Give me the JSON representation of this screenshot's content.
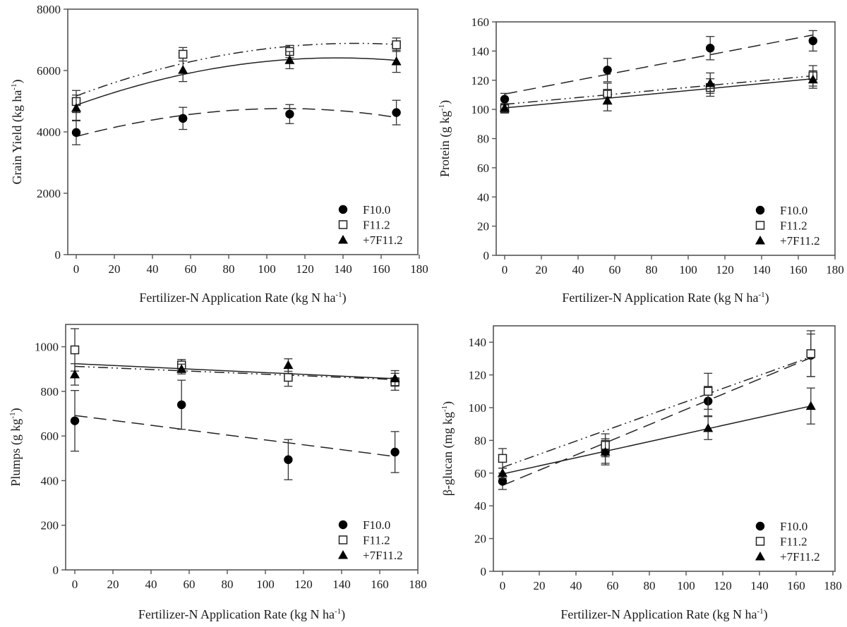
{
  "figure": {
    "panel_count": 4,
    "layout": "2x2"
  },
  "chart_data": [
    {
      "type": "scatter",
      "id": "grain-yield",
      "title": "",
      "xlabel": "Fertilizer-N Application Rate (kg N ha",
      "xlabel_sup": "-1",
      "ylabel": "Grain Yield (kg ha",
      "ylabel_sup": "-1",
      "xlim": [
        -5,
        180
      ],
      "ylim": [
        0,
        8000
      ],
      "xticks": [
        0,
        20,
        40,
        60,
        80,
        100,
        120,
        140,
        160,
        180
      ],
      "yticks": [
        0,
        2000,
        4000,
        6000,
        8000
      ],
      "grid": false,
      "legend_position": "bottom-right",
      "x": [
        0,
        56,
        112,
        168
      ],
      "series": [
        {
          "name": "F10.0",
          "marker": "filled-circle",
          "fit": "quadratic",
          "line": "dashed",
          "values": [
            3980,
            4440,
            4580,
            4630
          ],
          "err": [
            400,
            360,
            310,
            400
          ],
          "fit_values": [
            3850,
            4540,
            4760,
            4470
          ]
        },
        {
          "name": "F11.2",
          "marker": "open-square",
          "fit": "quadratic",
          "line": "dash-dot-dot",
          "values": [
            4990,
            6530,
            6620,
            6840
          ],
          "err": [
            360,
            220,
            200,
            220
          ],
          "fit_values": [
            5170,
            6230,
            6790,
            6850
          ]
        },
        {
          "name": "+7F11.2",
          "marker": "filled-triangle",
          "fit": "quadratic",
          "line": "solid",
          "values": [
            4780,
            6020,
            6340,
            6300
          ],
          "err": [
            420,
            380,
            280,
            360
          ],
          "fit_values": [
            4870,
            5870,
            6360,
            6330
          ]
        }
      ]
    },
    {
      "type": "scatter",
      "id": "protein",
      "title": "",
      "xlabel": "Fertilizer-N Application Rate (kg N ha",
      "xlabel_sup": "-1",
      "ylabel": "Protein (g kg",
      "ylabel_sup": "-1",
      "xlim": [
        -5,
        180
      ],
      "ylim": [
        0,
        160
      ],
      "xticks": [
        0,
        20,
        40,
        60,
        80,
        100,
        120,
        140,
        160,
        180
      ],
      "yticks": [
        0,
        20,
        40,
        60,
        80,
        100,
        120,
        140,
        160
      ],
      "grid": false,
      "legend_position": "bottom-right",
      "x": [
        0,
        56,
        112,
        168
      ],
      "series": [
        {
          "name": "F10.0",
          "marker": "filled-circle",
          "fit": "linear",
          "line": "dashed",
          "values": [
            107,
            127,
            142,
            147
          ],
          "err": [
            4,
            8,
            8,
            7
          ],
          "fit_values": [
            110.5,
            124,
            137.5,
            151
          ]
        },
        {
          "name": "F11.2",
          "marker": "open-square",
          "fit": "linear",
          "line": "dash-dot-dot",
          "values": [
            100.5,
            111,
            115,
            123
          ],
          "err": [
            3,
            7,
            6,
            7
          ],
          "fit_values": [
            103.5,
            110,
            116.5,
            123
          ]
        },
        {
          "name": "+7F11.2",
          "marker": "filled-triangle",
          "fit": "linear",
          "line": "solid",
          "values": [
            101,
            106,
            118,
            120.5
          ],
          "err": [
            3,
            7,
            7,
            6
          ],
          "fit_values": [
            101,
            107.5,
            114.5,
            121
          ]
        }
      ]
    },
    {
      "type": "scatter",
      "id": "plumps",
      "title": "",
      "xlabel": "Fertilizer-N Application Rate (kg N ha",
      "xlabel_sup": "-1",
      "ylabel": "Plumps (g kg",
      "ylabel_sup": "-1",
      "xlim": [
        -5,
        180
      ],
      "ylim": [
        0,
        1100
      ],
      "xticks": [
        0,
        20,
        40,
        60,
        80,
        100,
        120,
        140,
        160,
        180
      ],
      "yticks": [
        0,
        200,
        400,
        600,
        800,
        1000
      ],
      "grid": false,
      "legend_position": "bottom-right",
      "x": [
        0,
        56,
        112,
        168
      ],
      "series": [
        {
          "name": "F10.0",
          "marker": "filled-circle",
          "fit": "linear",
          "line": "dashed",
          "values": [
            668,
            740,
            494,
            528
          ],
          "err": [
            136,
            110,
            90,
            92
          ],
          "fit_values": [
            692,
            631,
            570,
            508
          ]
        },
        {
          "name": "F11.2",
          "marker": "open-square",
          "fit": "linear",
          "line": "dash-dot-dot",
          "values": [
            986,
            918,
            863,
            843
          ],
          "err": [
            95,
            25,
            40,
            38
          ],
          "fit_values": [
            912,
            893,
            873,
            853
          ]
        },
        {
          "name": "+7F11.2",
          "marker": "filled-triangle",
          "fit": "linear",
          "line": "solid",
          "values": [
            876,
            900,
            918,
            858
          ],
          "err": [
            48,
            22,
            28,
            35
          ],
          "fit_values": [
            924,
            902,
            880,
            857
          ]
        }
      ]
    },
    {
      "type": "scatter",
      "id": "beta-glucan",
      "title": "",
      "xlabel": "Fertilizer-N Application Rate (kg N ha",
      "xlabel_sup": "-1",
      "ylabel": "β-glucan (mg kg",
      "ylabel_sup": "-1",
      "xlim": [
        -5,
        180
      ],
      "ylim": [
        0,
        150
      ],
      "xticks": [
        0,
        20,
        40,
        60,
        80,
        100,
        120,
        140,
        160,
        180
      ],
      "yticks": [
        0,
        20,
        40,
        60,
        80,
        100,
        120,
        140
      ],
      "grid": false,
      "legend_position": "bottom-right",
      "x": [
        0,
        56,
        112,
        168
      ],
      "series": [
        {
          "name": "F10.0",
          "marker": "filled-circle",
          "fit": "linear",
          "line": "dashed",
          "values": [
            55,
            73,
            104,
            132
          ],
          "err": [
            5,
            8,
            9,
            13
          ],
          "fit_values": [
            52.5,
            78.5,
            104.5,
            130.5
          ]
        },
        {
          "name": "F11.2",
          "marker": "open-square",
          "fit": "linear",
          "line": "dash-dot-dot",
          "values": [
            69,
            77,
            110,
            133
          ],
          "err": [
            6,
            7,
            11,
            14
          ],
          "fit_values": [
            63.5,
            86,
            108.5,
            131
          ]
        },
        {
          "name": "+7F11.2",
          "marker": "filled-triangle",
          "fit": "linear",
          "line": "solid",
          "values": [
            60,
            73,
            87.5,
            101
          ],
          "err": [
            3,
            7,
            7,
            11
          ],
          "fit_values": [
            59.5,
            73.3,
            87.2,
            101
          ]
        }
      ]
    }
  ]
}
